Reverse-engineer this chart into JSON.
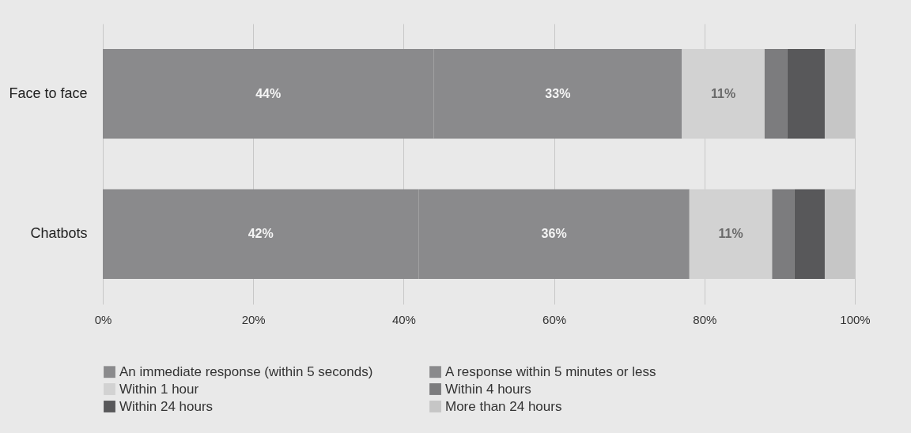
{
  "chart_data": {
    "type": "bar",
    "orientation": "horizontal",
    "stacked": true,
    "categories": [
      "Face to face",
      "Chatbots"
    ],
    "series": [
      {
        "name": "An immediate response (within 5 seconds)",
        "color": "#8a8a8c",
        "values": [
          44,
          42
        ],
        "value_labels": [
          "44%",
          "42%"
        ]
      },
      {
        "name": "A response within 5 minutes or less",
        "color": "#8a8a8c",
        "values": [
          33,
          36
        ],
        "value_labels": [
          "33%",
          "36%"
        ]
      },
      {
        "name": "Within 1 hour",
        "color": "#d2d2d2",
        "values": [
          11,
          11
        ],
        "value_labels": [
          "11%",
          "11%"
        ]
      },
      {
        "name": "Within 4 hours",
        "color": "#7c7c7e",
        "values": [
          3,
          3
        ]
      },
      {
        "name": "Within 24 hours",
        "color": "#58585a",
        "values": [
          5,
          4
        ]
      },
      {
        "name": "More than 24 hours",
        "color": "#c6c6c6",
        "values": [
          4,
          4
        ]
      }
    ],
    "xlim": [
      0,
      100
    ],
    "xticks": [
      {
        "value": 0,
        "label": "0%"
      },
      {
        "value": 20,
        "label": "20%"
      },
      {
        "value": 40,
        "label": "40%"
      },
      {
        "value": 60,
        "label": "60%"
      },
      {
        "value": 80,
        "label": "80%"
      },
      {
        "value": 100,
        "label": "100%"
      }
    ],
    "grid": "x",
    "legend": "bottom"
  }
}
